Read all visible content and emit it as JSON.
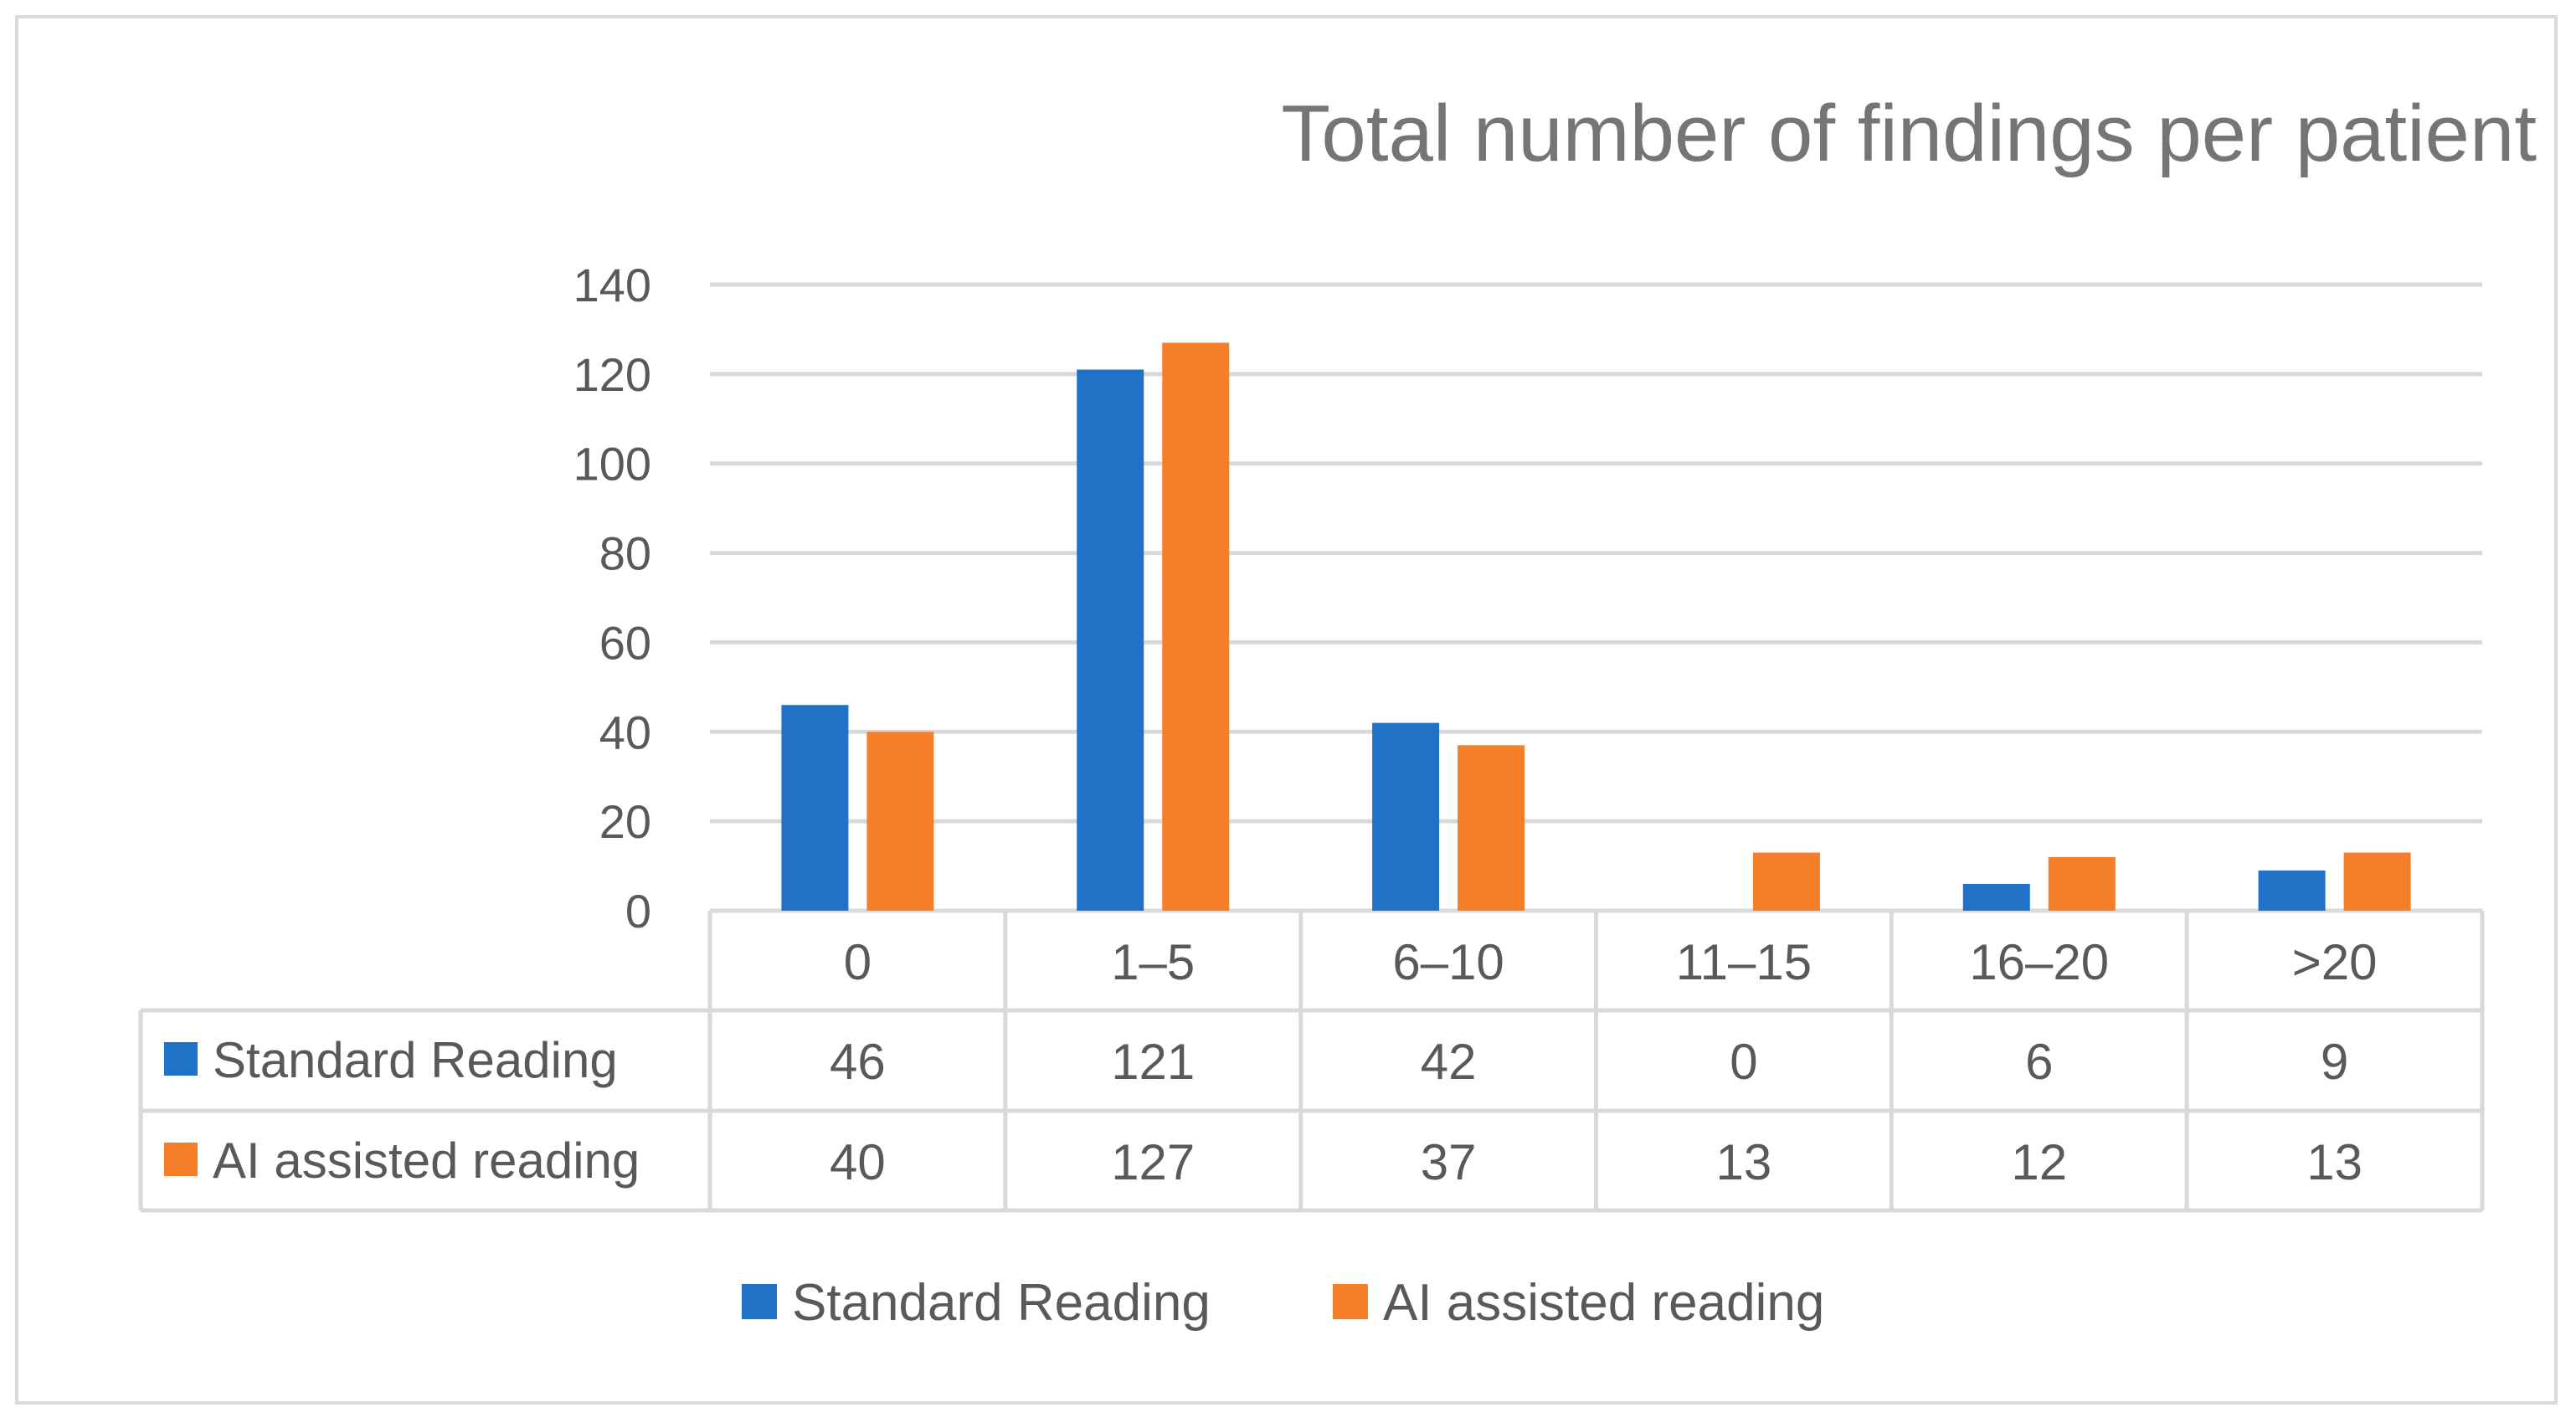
{
  "chart_data": {
    "type": "bar",
    "title": "Total number of findings per patient",
    "categories": [
      "0",
      "1–5",
      "6–10",
      "11–15",
      "16–20",
      ">20"
    ],
    "series": [
      {
        "name": "Standard Reading",
        "values": [
          46,
          121,
          42,
          0,
          6,
          9
        ],
        "color": "#1f72c6"
      },
      {
        "name": "AI assisted reading",
        "values": [
          40,
          127,
          37,
          13,
          12,
          13
        ],
        "color": "#f57f28"
      }
    ],
    "ylim": [
      0,
      140
    ],
    "yticks": [
      0,
      20,
      40,
      60,
      80,
      100,
      120,
      140
    ],
    "grid": true,
    "legend": "bottom",
    "data_table": true
  }
}
